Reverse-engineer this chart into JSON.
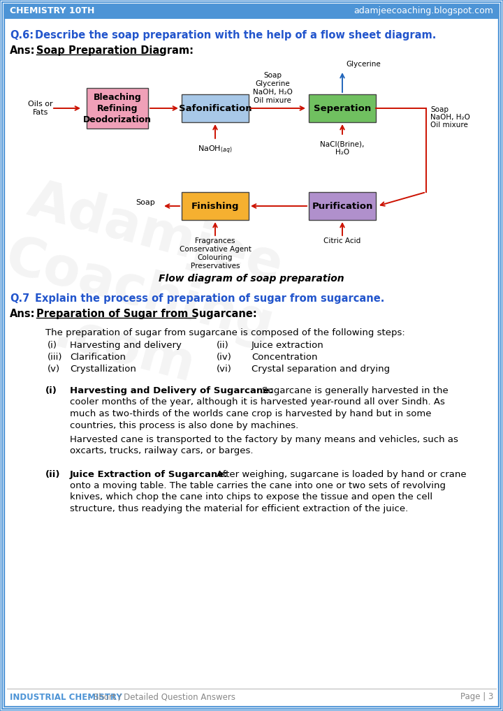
{
  "header_left": "CHEMISTRY 10TH",
  "header_right": "adamjeecoaching.blogspot.com",
  "footer_left": "INDUSTRIAL CHEMISTRY",
  "footer_left2": " - Short / Detailed Question Answers",
  "footer_right": "Page | 3",
  "header_bg": "#4d94d6",
  "border_color": "#4d94d6",
  "q6_label": "Q.6:",
  "q6_text": "Describe the soap preparation with the help of a flow sheet diagram.",
  "ans_label": "Ans:",
  "ans_subhead": "Soap Preparation Diagram:",
  "q7_label": "Q.7",
  "q7_text": "Explain the process of preparation of sugar from sugarcane.",
  "ans2_label": "Ans:",
  "ans2_subhead": "Preparation of Sugar from Sugarcane:",
  "ans2_intro": "The preparation of sugar from sugarcane is composed of the following steps:",
  "steps": [
    [
      "(i)",
      "Harvesting and delivery",
      "(ii)",
      "Juice extraction"
    ],
    [
      "(iii)",
      "Clarification",
      "(iv)",
      "Concentration"
    ],
    [
      "(v)",
      "Crystallization",
      "(vi)",
      "Crystal separation and drying"
    ]
  ],
  "section_i_bold": "Harvesting and Delivery of Sugarcane:",
  "section_i_text": "Sugarcane is generally harvested in the cooler months of the year, although it is harvested year-round all over Sindh. As much as two-thirds of the worlds cane crop is harvested by hand but in some countries, this process is also done by machines.",
  "section_i_text2": "Harvested cane is transported to the factory by many means and vehicles, such as oxcarts, trucks, railway cars, or barges.",
  "section_ii_bold": "Juice Extraction of Sugarcane:",
  "section_ii_text": "After weighing, sugarcane is loaded by hand or crane onto a moving table. The table carries the cane into one or two sets of revolving knives, which chop the cane into chips to expose the tissue and open the cell structure, thus readying the material for efficient extraction of the juice.",
  "box_bleaching_color": "#f0a0b8",
  "box_safonification_color": "#a8c8e8",
  "box_seperation_color": "#70c060",
  "box_finishing_color": "#f5b030",
  "box_purification_color": "#b090cc",
  "arrow_color": "#cc1100",
  "glycerine_arrow_color": "#2266bb",
  "bg_color": "#ffffff",
  "text_color": "#000000",
  "question_color": "#2255cc",
  "header_text_color": "#4d94d6",
  "caption_text": "Flow diagram of soap preparation",
  "watermark_text": "Adamjee\nCoaching\n.com"
}
